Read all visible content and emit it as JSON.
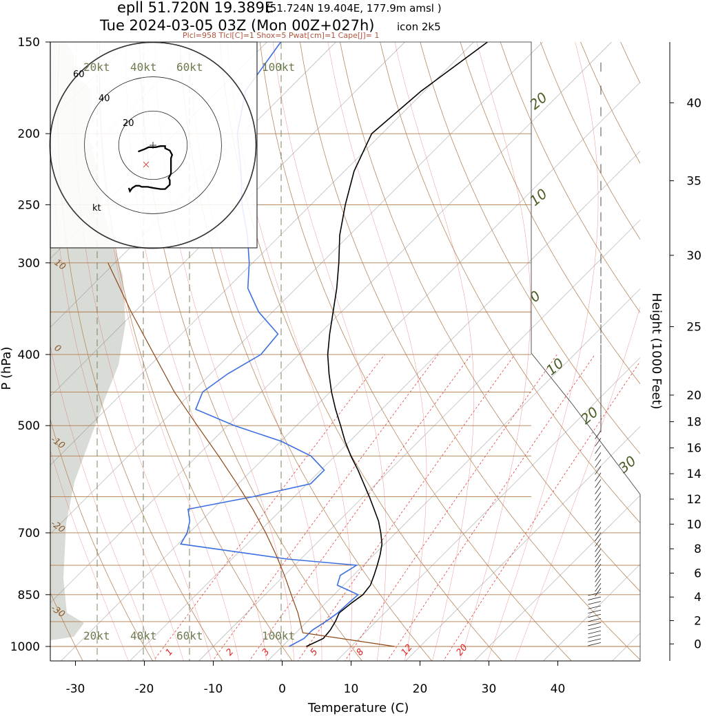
{
  "header": {
    "station_line": "epll 51.720N 19.389E",
    "station_coords": "(51.724N 19.404E, 177.9m amsl )",
    "valid_line": "Tue 2024-03-05 03Z (Mon 00Z+027h)",
    "model": "icon 2k5",
    "indices": "Plcl=958 Tlcl[C]=1 Shox=5 Pwat[cm]=1 Cape[J]= 1"
  },
  "axes": {
    "ylabel": "P (hPa)",
    "xlabel": "Temperature (C)",
    "height_label": "Height (1000 Feet)",
    "pressure_ticks": [
      "150",
      "200",
      "250",
      "300",
      "400",
      "500",
      "700",
      "850",
      "1000"
    ],
    "temp_ticks": [
      "-30",
      "-20",
      "-10",
      "0",
      "10",
      "20",
      "30",
      "40"
    ],
    "height_ticks": [
      "0",
      "2",
      "4",
      "6",
      "8",
      "10",
      "12",
      "14",
      "16",
      "18",
      "20",
      "25",
      "30",
      "35",
      "40"
    ]
  },
  "hodograph": {
    "speed_rows": [
      "20kt",
      "40kt",
      "60kt",
      "100kt"
    ],
    "ring_labels": [
      "20",
      "40",
      "60"
    ],
    "unit_label": "kt"
  },
  "line_labels": {
    "mixing": [
      "1",
      "2",
      "3",
      "5",
      "8",
      "12",
      "20"
    ],
    "dry_adiabats": [
      "30",
      "20",
      "10",
      "0",
      "-10",
      "-20",
      "-30"
    ],
    "moist_adiabats": [
      "20",
      "10",
      "0",
      "10",
      "20",
      "30"
    ]
  },
  "colors": {
    "temperature": "#000000",
    "dewpoint": "#3b6fe0",
    "parcel": "#8b4513",
    "isobar": "#b07a4a",
    "dry_adiabat": "#b8875a",
    "mixing_ratio": "#e23a3a",
    "moist_adiabat": "#9aa36a",
    "isotherm": "#7a7a7a",
    "cloud_shade": "#d9dcd6"
  },
  "chart_data": {
    "type": "line",
    "title": "epll 51.720N 19.389E",
    "xlabel": "Temperature (C)",
    "ylabel": "P (hPa)",
    "xlim": [
      -34,
      52
    ],
    "ylim": [
      1050,
      150
    ],
    "yscale": "log",
    "skew": "x-axis skewed; isotherms lean right with height",
    "series": [
      {
        "name": "temperature",
        "points": [
          [
            1000,
            3.5
          ],
          [
            975,
            4.8
          ],
          [
            950,
            4.6
          ],
          [
            925,
            4.1
          ],
          [
            900,
            3.4
          ],
          [
            875,
            3.7
          ],
          [
            850,
            4.2
          ],
          [
            825,
            3.9
          ],
          [
            800,
            3.0
          ],
          [
            775,
            2.0
          ],
          [
            750,
            0.9
          ],
          [
            725,
            -0.4
          ],
          [
            700,
            -2.2
          ],
          [
            675,
            -4.2
          ],
          [
            650,
            -6.6
          ],
          [
            625,
            -9.1
          ],
          [
            600,
            -11.8
          ],
          [
            575,
            -14.6
          ],
          [
            550,
            -17.7
          ],
          [
            525,
            -20.7
          ],
          [
            500,
            -23.6
          ],
          [
            475,
            -26.7
          ],
          [
            450,
            -29.8
          ],
          [
            425,
            -32.8
          ],
          [
            400,
            -35.8
          ],
          [
            375,
            -38.5
          ],
          [
            350,
            -41.2
          ],
          [
            325,
            -44.1
          ],
          [
            300,
            -47.5
          ],
          [
            275,
            -51.4
          ],
          [
            250,
            -55.0
          ],
          [
            225,
            -58.6
          ],
          [
            200,
            -61.5
          ],
          [
            175,
            -60.5
          ],
          [
            150,
            -58.0
          ]
        ]
      },
      {
        "name": "dewpoint",
        "points": [
          [
            1000,
            1.0
          ],
          [
            975,
            2.0
          ],
          [
            950,
            2.0
          ],
          [
            925,
            2.7
          ],
          [
            900,
            3.2
          ],
          [
            875,
            3.3
          ],
          [
            850,
            3.5
          ],
          [
            825,
            -0.9
          ],
          [
            800,
            -1.9
          ],
          [
            775,
            -1.0
          ],
          [
            760,
            -12.0
          ],
          [
            740,
            -22.0
          ],
          [
            725,
            -29.6
          ],
          [
            700,
            -30.3
          ],
          [
            675,
            -31.6
          ],
          [
            650,
            -33.6
          ],
          [
            625,
            -26.0
          ],
          [
            600,
            -19.5
          ],
          [
            575,
            -19.5
          ],
          [
            550,
            -23.5
          ],
          [
            525,
            -30.0
          ],
          [
            500,
            -39.0
          ],
          [
            475,
            -47.0
          ],
          [
            450,
            -48.5
          ],
          [
            425,
            -47.5
          ],
          [
            400,
            -45.5
          ],
          [
            375,
            -46.0
          ],
          [
            350,
            -52.0
          ],
          [
            325,
            -57.0
          ],
          [
            300,
            -60.5
          ],
          [
            275,
            -64.8
          ],
          [
            250,
            -70.0
          ],
          [
            225,
            -75.0
          ],
          [
            200,
            -81.0
          ],
          [
            175,
            -86.0
          ],
          [
            150,
            -88.0
          ]
        ]
      },
      {
        "name": "parcel",
        "points": [
          [
            1000,
            16.3
          ],
          [
            958,
            1.0
          ],
          [
            900,
            -2.6
          ],
          [
            850,
            -6.2
          ],
          [
            800,
            -10.0
          ],
          [
            750,
            -14.2
          ],
          [
            700,
            -18.9
          ],
          [
            650,
            -24.2
          ],
          [
            600,
            -30.2
          ],
          [
            550,
            -36.9
          ],
          [
            500,
            -44.4
          ],
          [
            450,
            -52.6
          ],
          [
            400,
            -61.0
          ],
          [
            350,
            -70.5
          ],
          [
            300,
            -81.0
          ]
        ]
      }
    ],
    "hodograph_points_kt": [
      [
        5,
        -2
      ],
      [
        10,
        0
      ],
      [
        14,
        2
      ],
      [
        20,
        2
      ],
      [
        24,
        3
      ],
      [
        27,
        3
      ],
      [
        28,
        3
      ],
      [
        28,
        1
      ],
      [
        30,
        0
      ],
      [
        32,
        -1
      ],
      [
        33,
        -3
      ],
      [
        34,
        -5
      ],
      [
        33,
        -8
      ],
      [
        33,
        -12
      ],
      [
        33,
        -17
      ],
      [
        33,
        -22
      ],
      [
        31,
        -26
      ],
      [
        32,
        -28
      ],
      [
        32,
        -32
      ],
      [
        30,
        -34
      ],
      [
        28,
        -36
      ],
      [
        24,
        -36
      ],
      [
        18,
        -35
      ],
      [
        13,
        -34
      ],
      [
        8,
        -34
      ],
      [
        6,
        -33
      ],
      [
        3,
        -33
      ],
      [
        0,
        -35
      ],
      [
        -2,
        -38
      ],
      [
        -3,
        -35
      ]
    ],
    "grid": true,
    "legend": "none"
  }
}
